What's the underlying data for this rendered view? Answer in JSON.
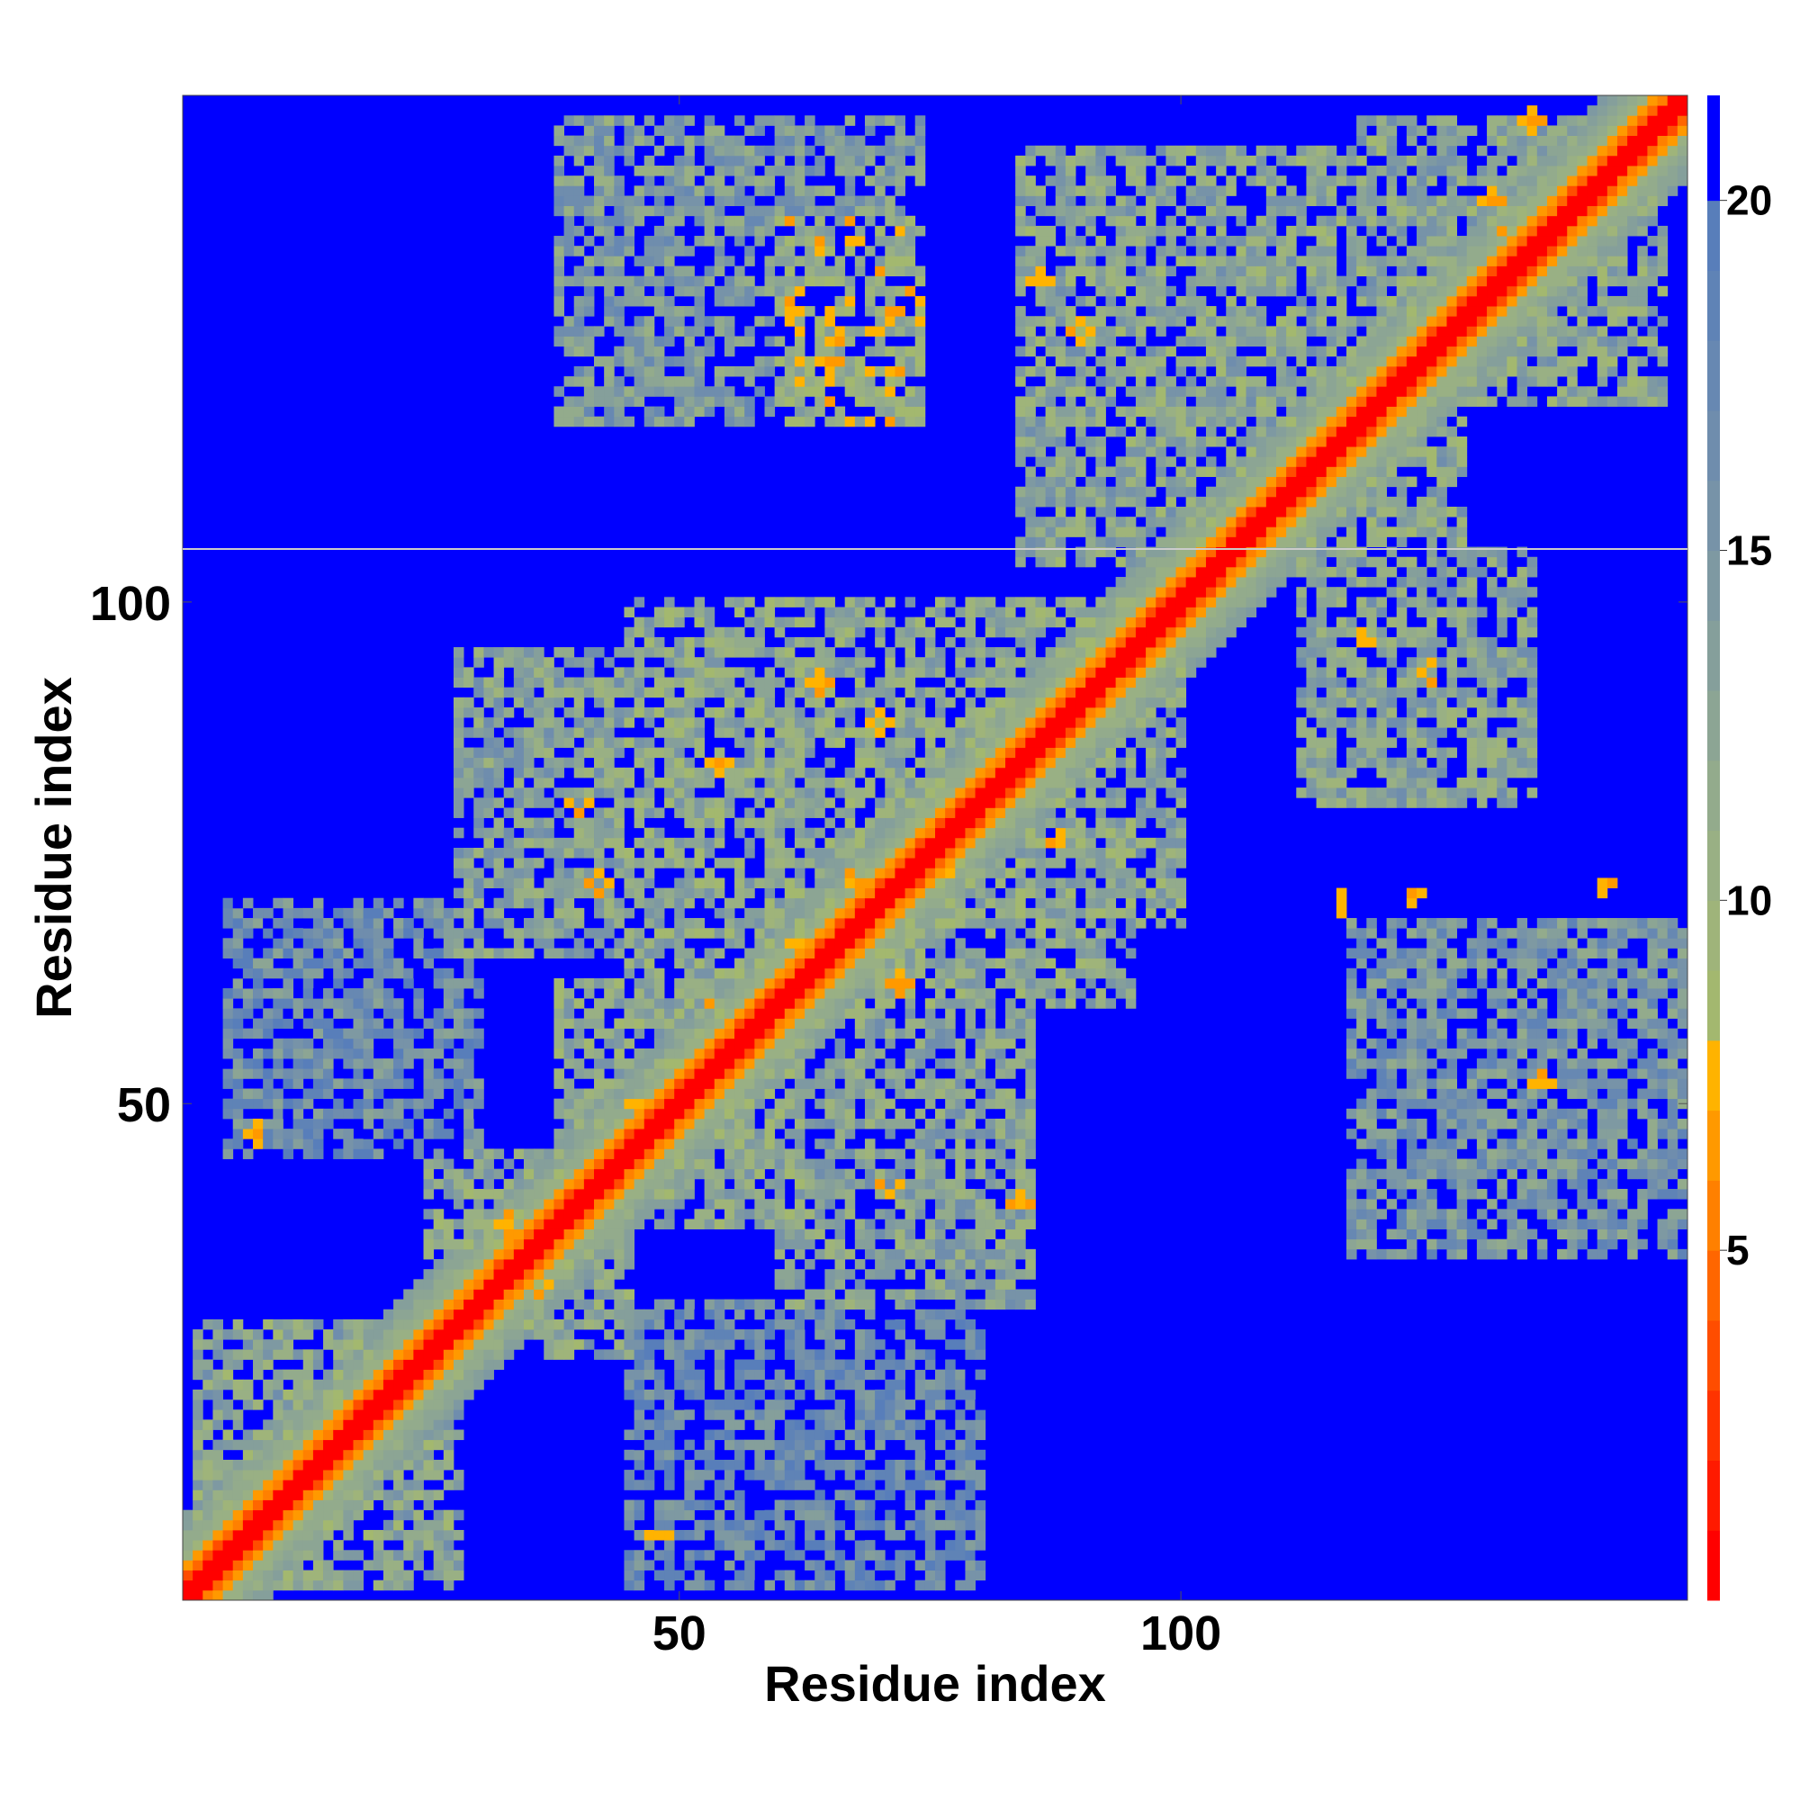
{
  "chart_data": {
    "type": "heatmap",
    "title": "",
    "xlabel": "Residue index",
    "ylabel": "Residue index",
    "n_residues": 150,
    "xlim": [
      0.5,
      150.5
    ],
    "ylim": [
      0.5,
      150.5
    ],
    "x_ticks": [
      50,
      100
    ],
    "y_ticks": [
      50,
      100
    ],
    "x_tick_labels": [
      "50",
      "100"
    ],
    "y_tick_labels": [
      "50",
      "100"
    ],
    "colorbar": {
      "range": [
        0,
        21.5
      ],
      "ticks": [
        5,
        10,
        15,
        20
      ],
      "tick_labels": [
        "5",
        "10",
        "15",
        "20"
      ],
      "levels": [
        {
          "upto": 1.0,
          "color": "#ff0000"
        },
        {
          "upto": 2.0,
          "color": "#ff1a00"
        },
        {
          "upto": 3.0,
          "color": "#ff3300"
        },
        {
          "upto": 4.0,
          "color": "#ff4d00"
        },
        {
          "upto": 5.0,
          "color": "#ff6600"
        },
        {
          "upto": 6.0,
          "color": "#ff8000"
        },
        {
          "upto": 7.0,
          "color": "#ff9900"
        },
        {
          "upto": 8.0,
          "color": "#ffb300"
        },
        {
          "upto": 9.0,
          "color": "#a3b86f"
        },
        {
          "upto": 10.0,
          "color": "#9fb47a"
        },
        {
          "upto": 11.0,
          "color": "#99b084"
        },
        {
          "upto": 12.0,
          "color": "#93ab8c"
        },
        {
          "upto": 13.0,
          "color": "#8ca594"
        },
        {
          "upto": 14.0,
          "color": "#859f9b"
        },
        {
          "upto": 15.0,
          "color": "#7e99a2"
        },
        {
          "upto": 16.0,
          "color": "#7793a8"
        },
        {
          "upto": 17.0,
          "color": "#6f8dad"
        },
        {
          "upto": 18.0,
          "color": "#6788b2"
        },
        {
          "upto": 19.0,
          "color": "#5f83b6"
        },
        {
          "upto": 20.0,
          "color": "#587eba"
        },
        {
          "upto": 21.5,
          "color": "#0000ff"
        }
      ]
    },
    "background_value": 21.5,
    "diagonal_value": 0,
    "contact_blocks": [
      {
        "x": [
          2,
          28
        ],
        "y": [
          2,
          28
        ],
        "d": 12.5
      },
      {
        "x": [
          25,
          45
        ],
        "y": [
          25,
          45
        ],
        "d": 12.5
      },
      {
        "x": [
          38,
          62
        ],
        "y": [
          38,
          62
        ],
        "d": 12.0
      },
      {
        "x": [
          45,
          95
        ],
        "y": [
          60,
          100
        ],
        "d": 12.0
      },
      {
        "x": [
          28,
          68
        ],
        "y": [
          65,
          95
        ],
        "d": 13.0
      },
      {
        "x": [
          60,
          85
        ],
        "y": [
          30,
          60
        ],
        "d": 13.0
      },
      {
        "x": [
          72,
          100
        ],
        "y": [
          68,
          95
        ],
        "d": 12.5
      },
      {
        "x": [
          84,
          128
        ],
        "y": [
          104,
          145
        ],
        "d": 12.5
      },
      {
        "x": [
          38,
          74
        ],
        "y": [
          118,
          148
        ],
        "d": 14.0
      },
      {
        "x": [
          60,
          74
        ],
        "y": [
          118,
          138
        ],
        "d": 10.5
      },
      {
        "x": [
          118,
          148
        ],
        "y": [
          120,
          148
        ],
        "d": 12.5
      },
      {
        "x": [
          112,
          135
        ],
        "y": [
          80,
          105
        ],
        "d": 13.0
      },
      {
        "x": [
          117,
          148
        ],
        "y": [
          35,
          68
        ],
        "d": 15.0
      },
      {
        "x": [
          135,
          150
        ],
        "y": [
          35,
          68
        ],
        "d": 15.0
      },
      {
        "x": [
          5,
          30
        ],
        "y": [
          45,
          70
        ],
        "d": 16.5
      },
      {
        "x": [
          45,
          80
        ],
        "y": [
          2,
          30
        ],
        "d": 17.0
      }
    ],
    "hotspots": [
      [
        48,
        7
      ],
      [
        8,
        47
      ],
      [
        33,
        38
      ],
      [
        36,
        32
      ],
      [
        46,
        50
      ],
      [
        52,
        60
      ],
      [
        62,
        66
      ],
      [
        67,
        72
      ],
      [
        72,
        62
      ],
      [
        77,
        74
      ],
      [
        82,
        80
      ],
      [
        88,
        76
      ],
      [
        70,
        88
      ],
      [
        64,
        92
      ],
      [
        54,
        84
      ],
      [
        40,
        80
      ],
      [
        42,
        72
      ],
      [
        90,
        127
      ],
      [
        86,
        132
      ],
      [
        65,
        127
      ],
      [
        62,
        130
      ],
      [
        65,
        124
      ],
      [
        123,
        71
      ],
      [
        116,
        70
      ],
      [
        125,
        93
      ],
      [
        118,
        96
      ],
      [
        131,
        140
      ],
      [
        136,
        52
      ],
      [
        142,
        72
      ],
      [
        135,
        148
      ],
      [
        132,
        136
      ],
      [
        84,
        40
      ],
      [
        71,
        42
      ]
    ]
  }
}
